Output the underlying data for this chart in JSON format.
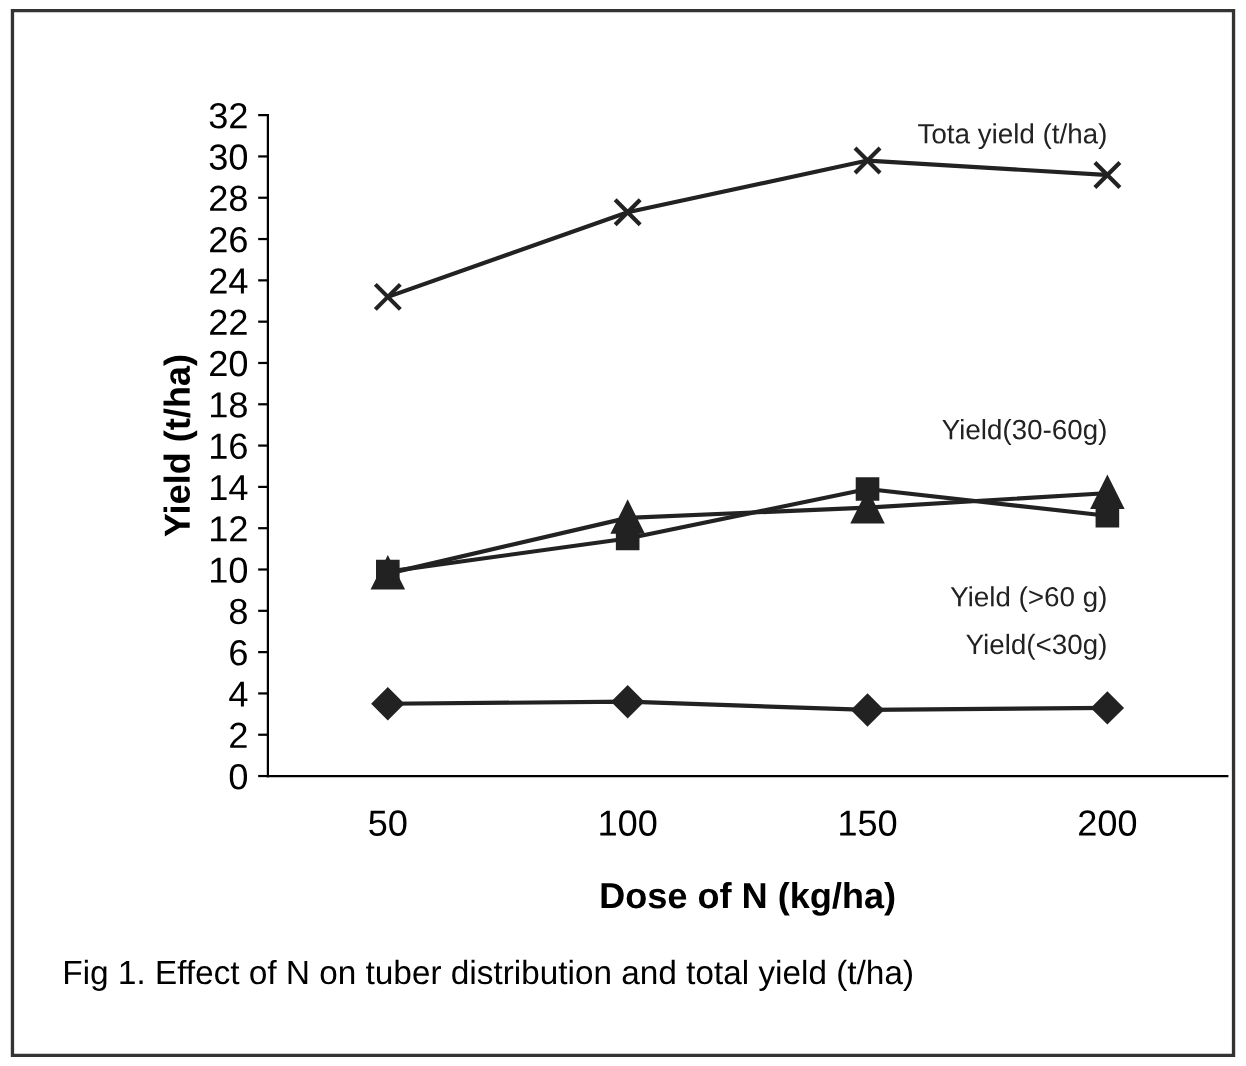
{
  "chart_data": {
    "type": "line",
    "xlabel": "Dose of N (kg/ha)",
    "ylabel": "Yield (t/ha)",
    "categories": [
      "50",
      "100",
      "150",
      "200"
    ],
    "series": [
      {
        "name": "Tota yield (t/ha)",
        "color": "#222222",
        "marker": "cross",
        "values": [
          23.2,
          27.3,
          29.8,
          29.1
        ]
      },
      {
        "name": "Yield(30-60g)",
        "color": "#222222",
        "marker": "triangle",
        "values": [
          9.8,
          12.5,
          13.0,
          13.7
        ]
      },
      {
        "name": "Yield (>60 g)",
        "color": "#222222",
        "marker": "square",
        "values": [
          9.9,
          11.5,
          13.9,
          12.6
        ]
      },
      {
        "name": "Yield(<30g)",
        "color": "#222222",
        "marker": "diamond",
        "values": [
          3.5,
          3.6,
          3.2,
          3.3
        ]
      }
    ],
    "ylim": [
      0,
      32
    ],
    "yticks": [
      0,
      2,
      4,
      6,
      8,
      10,
      12,
      14,
      16,
      18,
      20,
      22,
      24,
      26,
      28,
      30,
      32
    ],
    "grid": false,
    "legend": false,
    "line_style": "solid",
    "annotations": [
      "Fig 1. Effect of N on tuber distribution and total yield (t/ha)"
    ]
  }
}
